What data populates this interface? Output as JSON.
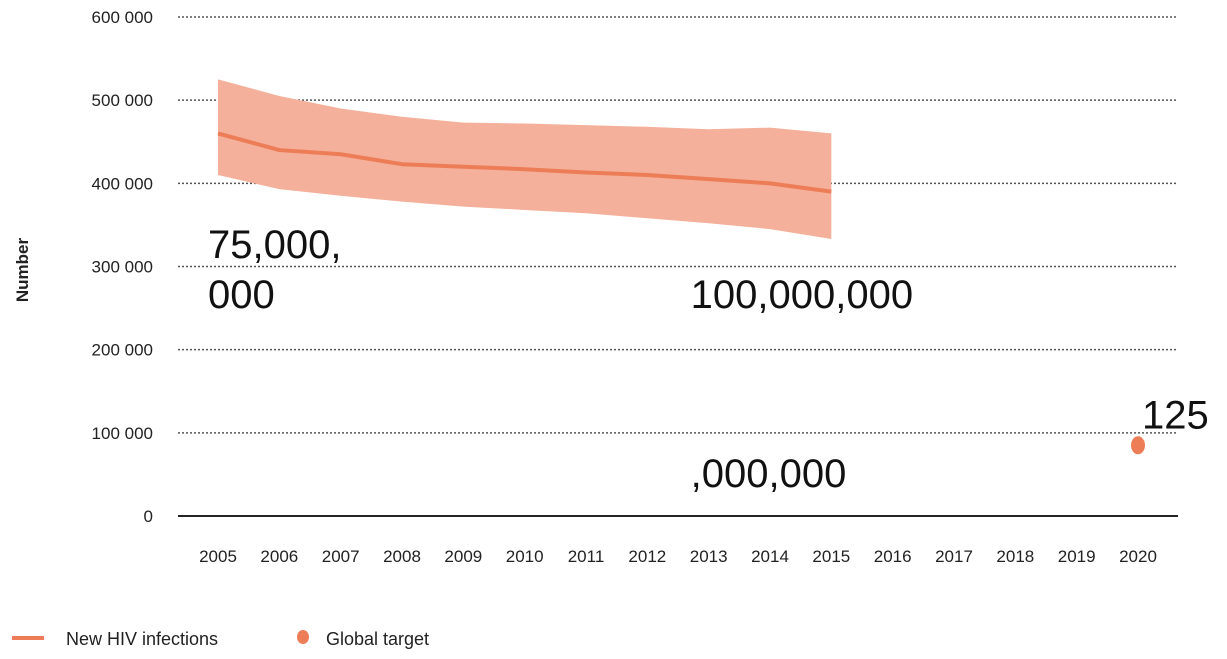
{
  "chart_data": {
    "type": "line",
    "ylabel": "Number",
    "xlabel": "",
    "x": [
      "2005",
      "2006",
      "2007",
      "2008",
      "2009",
      "2010",
      "2011",
      "2012",
      "2013",
      "2014",
      "2015",
      "2016",
      "2017",
      "2018",
      "2019",
      "2020"
    ],
    "ylim": [
      0,
      600000
    ],
    "y_ticks": [
      "0",
      "100 000",
      "200 000",
      "300 000",
      "400 000",
      "500 000",
      "600 000"
    ],
    "grid": true,
    "legend_position": "bottom-left",
    "series": [
      {
        "name": "New HIV infections",
        "color": "#ed7d57",
        "band_color": "#f4b09a",
        "x": [
          "2005",
          "2006",
          "2007",
          "2008",
          "2009",
          "2010",
          "2011",
          "2012",
          "2013",
          "2014",
          "2015"
        ],
        "values": [
          460000,
          440000,
          435000,
          423000,
          420000,
          417000,
          413000,
          410000,
          405000,
          400000,
          390000
        ],
        "upper": [
          525000,
          505000,
          490000,
          480000,
          473000,
          472000,
          470000,
          468000,
          465000,
          467000,
          460000
        ],
        "lower": [
          410000,
          393000,
          385000,
          378000,
          372000,
          368000,
          364000,
          358000,
          352000,
          345000,
          333000
        ]
      },
      {
        "name": "Global target",
        "color": "#ed7d57",
        "x": [
          "2020"
        ],
        "values": [
          85000
        ]
      }
    ],
    "annotations": [
      {
        "text": "75,000,",
        "x": "2005",
        "y": 310000
      },
      {
        "text": "000",
        "x": "2005",
        "y": 250000
      },
      {
        "text": "100,000,000",
        "x": "2013",
        "y": 250000
      },
      {
        "text": "125",
        "x": "2020",
        "y": 105000
      },
      {
        "text": ",000,000",
        "x": "2013",
        "y": 35000
      }
    ]
  }
}
